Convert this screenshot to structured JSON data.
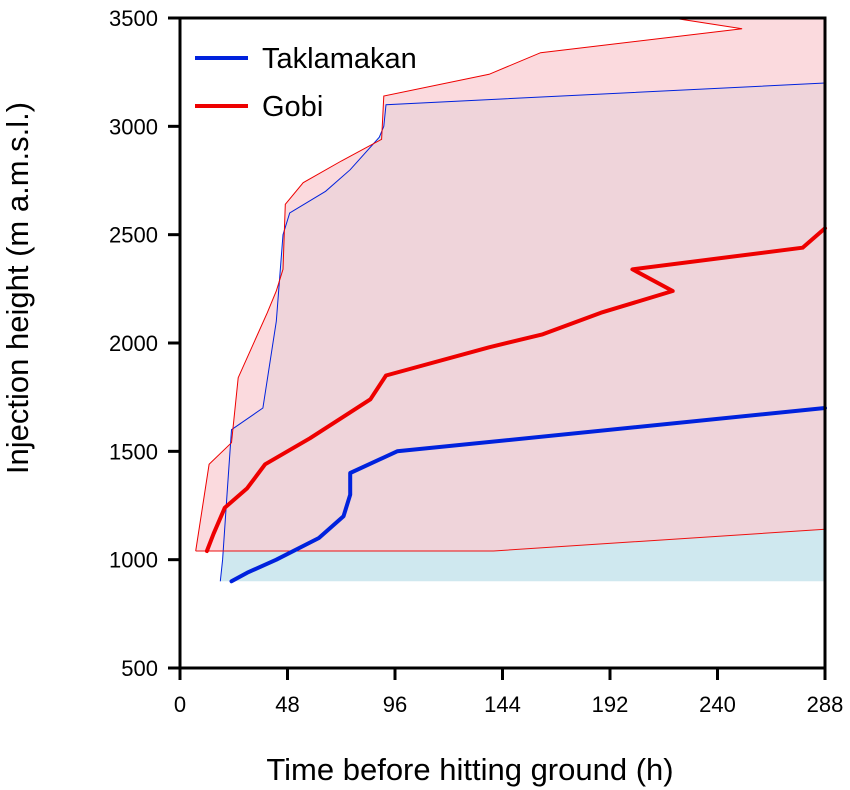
{
  "chart_data": {
    "type": "line",
    "xlabel": "Time before hitting ground (h)",
    "ylabel": "Injection height  (m a.m.s.l.)",
    "xlim": [
      0,
      288
    ],
    "ylim": [
      500,
      3500
    ],
    "xticks": [
      0,
      48,
      96,
      144,
      192,
      240,
      288
    ],
    "yticks": [
      500,
      1000,
      1500,
      2000,
      2500,
      3000,
      3500
    ],
    "grid": false,
    "legend": "top-left",
    "series": [
      {
        "name": "Taklamakan",
        "color": "#0022dd",
        "band_color": "#cfe8ef",
        "band_lower_color": "#3344ee",
        "points": [
          [
            23,
            900
          ],
          [
            30,
            940
          ],
          [
            43,
            1000
          ],
          [
            62,
            1100
          ],
          [
            73,
            1200
          ],
          [
            76,
            1300
          ],
          [
            76,
            1400
          ],
          [
            97,
            1500
          ],
          [
            288,
            1700
          ]
        ],
        "band_lower": [
          [
            18,
            900
          ],
          [
            288,
            900
          ]
        ],
        "band_upper": [
          [
            18,
            900
          ],
          [
            19,
            1000
          ],
          [
            21,
            1300
          ],
          [
            23,
            1600
          ],
          [
            37,
            1700
          ],
          [
            43,
            2100
          ],
          [
            46,
            2500
          ],
          [
            49,
            2600
          ],
          [
            65,
            2700
          ],
          [
            76,
            2800
          ],
          [
            89,
            2950
          ],
          [
            91,
            3000
          ],
          [
            92,
            3100
          ],
          [
            288,
            3200
          ]
        ]
      },
      {
        "name": "Gobi",
        "color": "#ee0000",
        "band_color": "#f9cdd3",
        "band_lower_color": "#ee1111",
        "points": [
          [
            12,
            1040
          ],
          [
            15,
            1120
          ],
          [
            20,
            1240
          ],
          [
            30,
            1330
          ],
          [
            38,
            1440
          ],
          [
            58,
            1560
          ],
          [
            73,
            1660
          ],
          [
            85,
            1740
          ],
          [
            92,
            1850
          ],
          [
            138,
            1980
          ],
          [
            162,
            2040
          ],
          [
            188,
            2140
          ],
          [
            220,
            2240
          ],
          [
            202,
            2340
          ],
          [
            278,
            2440
          ],
          [
            288,
            2530
          ]
        ],
        "band_lower": [
          [
            7,
            1040
          ],
          [
            140,
            1040
          ],
          [
            288,
            1140
          ]
        ],
        "band_upper": [
          [
            7,
            1040
          ],
          [
            13,
            1440
          ],
          [
            23,
            1540
          ],
          [
            26,
            1840
          ],
          [
            39,
            2140
          ],
          [
            43,
            2240
          ],
          [
            46,
            2340
          ],
          [
            47,
            2640
          ],
          [
            55,
            2740
          ],
          [
            72,
            2840
          ],
          [
            90,
            2940
          ],
          [
            91,
            3140
          ],
          [
            138,
            3240
          ],
          [
            161,
            3340
          ],
          [
            251,
            3450
          ],
          [
            220,
            3500
          ],
          [
            288,
            3500
          ]
        ]
      }
    ]
  }
}
